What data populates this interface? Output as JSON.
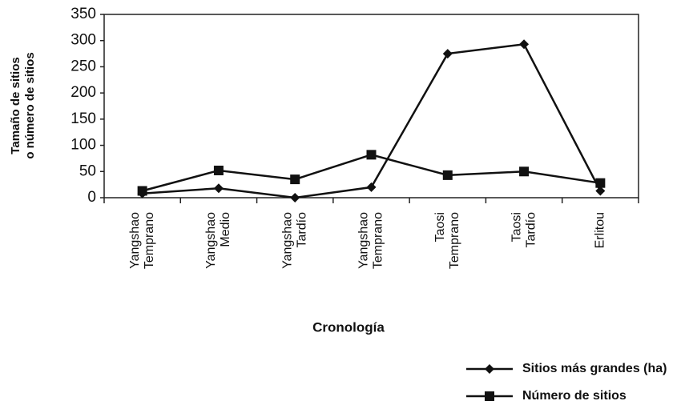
{
  "chart_data": {
    "type": "line",
    "y_label": [
      "Tamaño de sitios",
      "o número de sitios"
    ],
    "x_label": "Cronología",
    "categories": [
      [
        "Yangshao",
        "Temprano"
      ],
      [
        "Yangshao",
        "Medio"
      ],
      [
        "Yangshao",
        "Tardío"
      ],
      [
        "Yangshao",
        "Temprano"
      ],
      [
        "Taosi",
        "Temprano"
      ],
      [
        "Taosi",
        "Tardío"
      ],
      [
        "Erlitou"
      ]
    ],
    "series": [
      {
        "name": "Sitios más grandes (ha)",
        "color": "#111111",
        "marker": "diamond",
        "values": [
          8,
          18,
          0,
          20,
          275,
          293,
          13
        ]
      },
      {
        "name": "Número de sitios",
        "color": "#111111",
        "marker": "square",
        "values": [
          13,
          52,
          35,
          82,
          43,
          50,
          28
        ]
      }
    ],
    "ylim": [
      0,
      350
    ],
    "yticks": [
      0,
      50,
      100,
      150,
      200,
      250,
      300,
      350
    ],
    "grid": false
  }
}
